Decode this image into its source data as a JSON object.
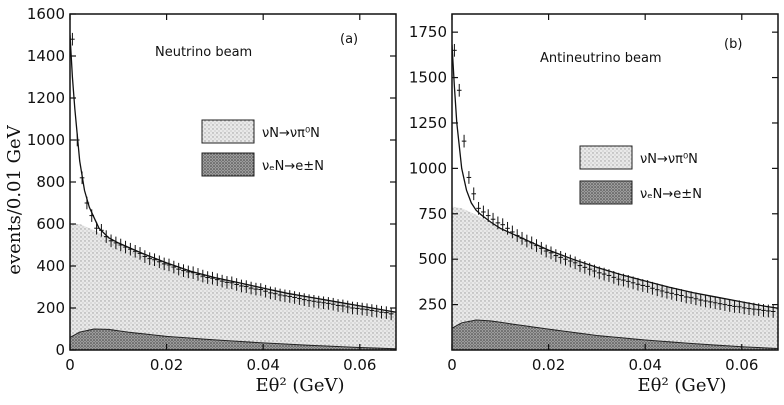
{
  "figure": {
    "ylabel": "events/0.01 GeV",
    "xlabel": "Eθ² (GeV)"
  },
  "chart_data": [
    {
      "type": "line",
      "panel_label": "(a)",
      "title": "Neutrino beam",
      "xlabel": "Eθ² (GeV)",
      "ylabel": "events/0.01 GeV",
      "xlim": [
        0,
        0.0675
      ],
      "ylim": [
        0,
        1600
      ],
      "xticks": [
        0,
        0.02,
        0.04,
        0.06
      ],
      "yticks": [
        0,
        200,
        400,
        600,
        800,
        1000,
        1200,
        1400,
        1600
      ],
      "xtick_labels": [
        "0",
        "0.02",
        "0.04",
        "0.06"
      ],
      "ytick_labels": [
        "0",
        "200",
        "400",
        "600",
        "800",
        "1000",
        "1200",
        "1400",
        "1600"
      ],
      "legend": [
        {
          "label": "νN→νπ⁰N",
          "pattern": "light-dots"
        },
        {
          "label": "νₑN→e±N",
          "pattern": "dark-dots"
        }
      ],
      "series": [
        {
          "name": "νN→νπ⁰N",
          "kind": "area",
          "x": [
            0,
            0.002,
            0.005,
            0.01,
            0.015,
            0.02,
            0.025,
            0.03,
            0.035,
            0.04,
            0.045,
            0.05,
            0.055,
            0.06,
            0.065,
            0.0675
          ],
          "y": [
            600,
            600,
            570,
            510,
            460,
            415,
            375,
            345,
            320,
            295,
            270,
            250,
            230,
            210,
            190,
            180
          ]
        },
        {
          "name": "νₑN→e±N",
          "kind": "area",
          "x": [
            0,
            0.002,
            0.005,
            0.008,
            0.012,
            0.02,
            0.03,
            0.04,
            0.05,
            0.06,
            0.0675
          ],
          "y": [
            60,
            85,
            100,
            98,
            85,
            65,
            48,
            34,
            22,
            12,
            6
          ]
        },
        {
          "name": "fit",
          "kind": "line",
          "x": [
            0,
            0.0005,
            0.001,
            0.002,
            0.003,
            0.004,
            0.005,
            0.006,
            0.008,
            0.01,
            0.015,
            0.02,
            0.025,
            0.03,
            0.035,
            0.04,
            0.045,
            0.05,
            0.055,
            0.06,
            0.065,
            0.0675
          ],
          "y": [
            1500,
            1300,
            1150,
            900,
            760,
            680,
            630,
            580,
            535,
            510,
            460,
            415,
            375,
            345,
            320,
            295,
            270,
            250,
            230,
            210,
            190,
            180
          ]
        },
        {
          "name": "data",
          "kind": "errorbars",
          "x": [
            0.0005,
            0.0015,
            0.0025,
            0.0035,
            0.0045,
            0.0055,
            0.0065,
            0.0075,
            0.0085,
            0.0095,
            0.0105,
            0.0115,
            0.0125,
            0.0135,
            0.0145,
            0.0155,
            0.0165,
            0.0175,
            0.0185,
            0.0195,
            0.0205,
            0.0215,
            0.0225,
            0.0235,
            0.0245,
            0.0255,
            0.0265,
            0.0275,
            0.0285,
            0.0295,
            0.0305,
            0.0315,
            0.0325,
            0.0335,
            0.0345,
            0.0355,
            0.0365,
            0.0375,
            0.0385,
            0.0395,
            0.0405,
            0.0415,
            0.0425,
            0.0435,
            0.0445,
            0.0455,
            0.0465,
            0.0475,
            0.0485,
            0.0495,
            0.0505,
            0.0515,
            0.0525,
            0.0535,
            0.0545,
            0.0555,
            0.0565,
            0.0575,
            0.0585,
            0.0595,
            0.0605,
            0.0615,
            0.0625,
            0.0635,
            0.0645,
            0.0655,
            0.0665
          ],
          "y": [
            1480,
            1000,
            820,
            700,
            640,
            580,
            570,
            540,
            520,
            510,
            500,
            490,
            480,
            470,
            460,
            445,
            435,
            430,
            420,
            410,
            405,
            395,
            385,
            378,
            372,
            368,
            360,
            352,
            345,
            342,
            335,
            328,
            322,
            320,
            312,
            305,
            302,
            295,
            290,
            288,
            280,
            272,
            268,
            262,
            258,
            255,
            250,
            245,
            240,
            235,
            232,
            228,
            225,
            222,
            218,
            212,
            210,
            205,
            200,
            198,
            195,
            192,
            188,
            185,
            180,
            178,
            172
          ],
          "err": 30
        }
      ]
    },
    {
      "type": "line",
      "panel_label": "(b)",
      "title": "Antineutrino beam",
      "xlabel": "Eθ² (GeV)",
      "ylabel": "",
      "xlim": [
        0,
        0.0675
      ],
      "ylim": [
        0,
        1850
      ],
      "xticks": [
        0,
        0.02,
        0.04,
        0.06
      ],
      "yticks": [
        250,
        500,
        750,
        1000,
        1250,
        1500,
        1750
      ],
      "xtick_labels": [
        "0",
        "0.02",
        "0.04",
        "0.06"
      ],
      "ytick_labels": [
        "250",
        "500",
        "750",
        "1000",
        "1250",
        "1500",
        "1750"
      ],
      "legend": [
        {
          "label": "νN→νπ⁰N",
          "pattern": "light-dots"
        },
        {
          "label": "νₑN→e±N",
          "pattern": "dark-dots"
        }
      ],
      "series": [
        {
          "name": "νN→νπ⁰N",
          "kind": "area",
          "x": [
            0,
            0.002,
            0.005,
            0.01,
            0.015,
            0.02,
            0.025,
            0.03,
            0.035,
            0.04,
            0.045,
            0.05,
            0.055,
            0.06,
            0.065,
            0.0675
          ],
          "y": [
            790,
            780,
            745,
            670,
            610,
            550,
            500,
            455,
            415,
            380,
            345,
            315,
            290,
            265,
            240,
            230
          ]
        },
        {
          "name": "νₑN→e±N",
          "kind": "area",
          "x": [
            0,
            0.002,
            0.005,
            0.008,
            0.012,
            0.02,
            0.03,
            0.04,
            0.05,
            0.06,
            0.0675
          ],
          "y": [
            120,
            150,
            165,
            160,
            145,
            115,
            80,
            55,
            35,
            18,
            8
          ]
        },
        {
          "name": "fit",
          "kind": "line",
          "x": [
            0,
            0.0005,
            0.001,
            0.002,
            0.003,
            0.004,
            0.005,
            0.006,
            0.008,
            0.01,
            0.015,
            0.02,
            0.025,
            0.03,
            0.035,
            0.04,
            0.045,
            0.05,
            0.055,
            0.06,
            0.065,
            0.0675
          ],
          "y": [
            1680,
            1450,
            1250,
            1000,
            880,
            810,
            770,
            745,
            705,
            670,
            610,
            550,
            500,
            455,
            415,
            380,
            345,
            315,
            290,
            265,
            240,
            230
          ]
        },
        {
          "name": "data",
          "kind": "errorbars",
          "x": [
            0.0005,
            0.0015,
            0.0025,
            0.0035,
            0.0045,
            0.0055,
            0.0065,
            0.0075,
            0.0085,
            0.0095,
            0.0105,
            0.0115,
            0.0125,
            0.0135,
            0.0145,
            0.0155,
            0.0165,
            0.0175,
            0.0185,
            0.0195,
            0.0205,
            0.0215,
            0.0225,
            0.0235,
            0.0245,
            0.0255,
            0.0265,
            0.0275,
            0.0285,
            0.0295,
            0.0305,
            0.0315,
            0.0325,
            0.0335,
            0.0345,
            0.0355,
            0.0365,
            0.0375,
            0.0385,
            0.0395,
            0.0405,
            0.0415,
            0.0425,
            0.0435,
            0.0445,
            0.0455,
            0.0465,
            0.0475,
            0.0485,
            0.0495,
            0.0505,
            0.0515,
            0.0525,
            0.0535,
            0.0545,
            0.0555,
            0.0565,
            0.0575,
            0.0585,
            0.0595,
            0.0605,
            0.0615,
            0.0625,
            0.0635,
            0.0645,
            0.0655,
            0.0665
          ],
          "y": [
            1650,
            1430,
            1150,
            950,
            860,
            780,
            760,
            740,
            720,
            700,
            690,
            670,
            650,
            630,
            615,
            600,
            590,
            575,
            560,
            545,
            535,
            520,
            510,
            500,
            490,
            480,
            465,
            455,
            445,
            435,
            425,
            418,
            410,
            400,
            390,
            385,
            378,
            370,
            362,
            355,
            350,
            340,
            332,
            325,
            318,
            312,
            305,
            300,
            292,
            288,
            282,
            275,
            270,
            265,
            260,
            255,
            250,
            245,
            240,
            238,
            232,
            228,
            225,
            222,
            218,
            215,
            212
          ],
          "err": 35
        }
      ]
    }
  ]
}
